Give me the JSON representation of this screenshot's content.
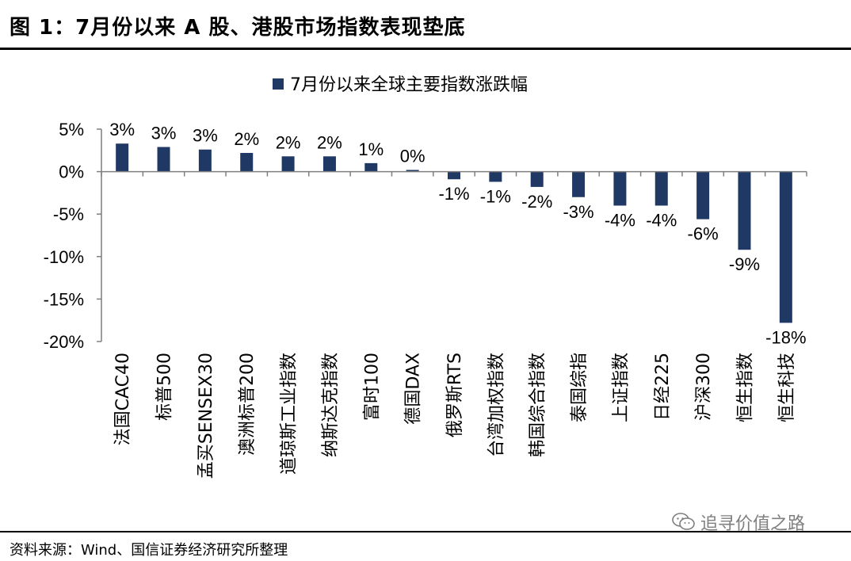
{
  "header": {
    "title": "图 1：7月份以来 A 股、港股市场指数表现垫底"
  },
  "footer": {
    "source": "资料来源：Wind、国信证券经济研究所整理"
  },
  "watermark": {
    "text": "追寻价值之路",
    "icon": "wechat-icon"
  },
  "colors": {
    "bar": "#1f3864",
    "axis": "#7f7f7f",
    "watermark": "#7f7f7f"
  },
  "chart_data": {
    "type": "bar",
    "title": "",
    "xlabel": "",
    "ylabel": "",
    "ylim": [
      -20,
      5
    ],
    "yticks": [
      5,
      0,
      -5,
      -10,
      -15,
      -20
    ],
    "ytick_labels": [
      "5%",
      "0%",
      "-5%",
      "-10%",
      "-15%",
      "-20%"
    ],
    "legend": {
      "position": "top-center",
      "entries": [
        "7月份以来全球主要指数涨跌幅"
      ]
    },
    "grid": false,
    "categories": [
      "法国CAC40",
      "标普500",
      "孟买SENSEX30",
      "澳洲标普200",
      "道琼斯工业指数",
      "纳斯达克指数",
      "富时100",
      "德国DAX",
      "俄罗斯RTS",
      "台湾加权指数",
      "韩国综合指数",
      "泰国综指",
      "上证指数",
      "日经225",
      "沪深300",
      "恒生指数",
      "恒生科技"
    ],
    "series": [
      {
        "name": "7月份以来全球主要指数涨跌幅",
        "values": [
          3.3,
          2.9,
          2.6,
          2.2,
          1.8,
          1.8,
          1.0,
          0.2,
          -0.9,
          -1.2,
          -1.8,
          -3.0,
          -4.0,
          -4.0,
          -5.6,
          -9.2,
          -17.8
        ],
        "labels": [
          "3%",
          "3%",
          "3%",
          "2%",
          "2%",
          "2%",
          "1%",
          "0%",
          "-1%",
          "-1%",
          "-2%",
          "-3%",
          "-4%",
          "-4%",
          "-6%",
          "-9%",
          "-18%"
        ]
      }
    ]
  }
}
